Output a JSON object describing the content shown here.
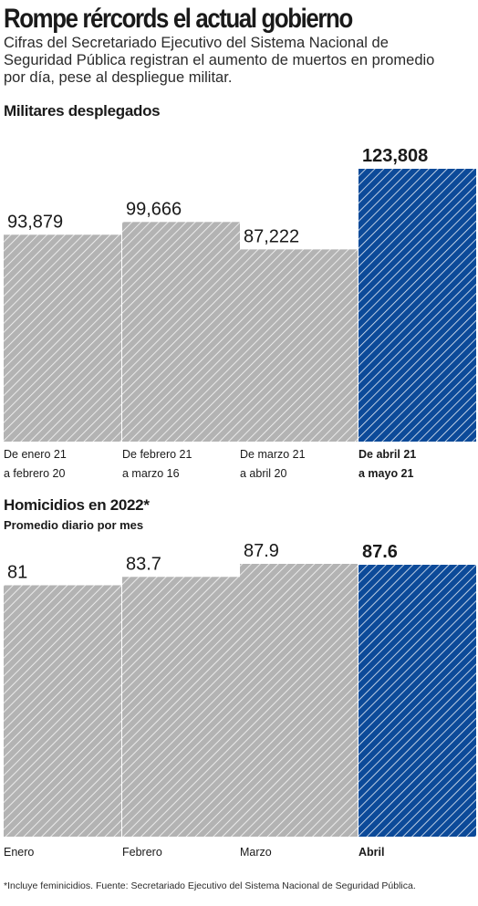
{
  "header": {
    "title": "Rompe rércords  el actual gobierno",
    "subtitle": "Cifras del Secretariado Ejecutivo del Sistema Nacional de Seguridad Pública registran el aumento de muertos en promedio por día, pese al despliegue militar."
  },
  "footer": {
    "source": "*Incluye feminicidios. Fuente: Secretariado Ejecutivo del Sistema Nacional de Seguridad Pública."
  },
  "colors": {
    "gray_bar": "#b3b3b3",
    "gray_hatch": "#ffffff",
    "highlight_bar": "#0c4a99",
    "highlight_hatch": "#ffffff",
    "text": "#1a1a1a"
  },
  "chart_data": [
    {
      "type": "bar",
      "title": "Militares desplegados",
      "subtitle": "",
      "categories": [
        [
          "De enero 21",
          "a febrero 20"
        ],
        [
          "De febrero 21",
          "a marzo 16"
        ],
        [
          "De marzo 21",
          "a abril 20"
        ],
        [
          "De abril 21",
          "a mayo 21"
        ]
      ],
      "values": [
        93879,
        99666,
        87222,
        123808
      ],
      "value_labels": [
        "93,879",
        "99,666",
        "87,222",
        "123,808"
      ],
      "highlight_index": 3,
      "ylim": [
        0,
        123808
      ],
      "grid": false,
      "legend": "none"
    },
    {
      "type": "bar",
      "title": "Homicidios en 2022*",
      "subtitle": "Promedio diario por mes",
      "categories": [
        [
          "Enero"
        ],
        [
          "Febrero"
        ],
        [
          "Marzo"
        ],
        [
          "Abril"
        ]
      ],
      "values": [
        81,
        83.7,
        87.9,
        87.6
      ],
      "value_labels": [
        "81",
        "83.7",
        "87.9",
        "87.6"
      ],
      "highlight_index": 3,
      "ylim": [
        0,
        87.9
      ],
      "grid": false,
      "legend": "none"
    }
  ]
}
